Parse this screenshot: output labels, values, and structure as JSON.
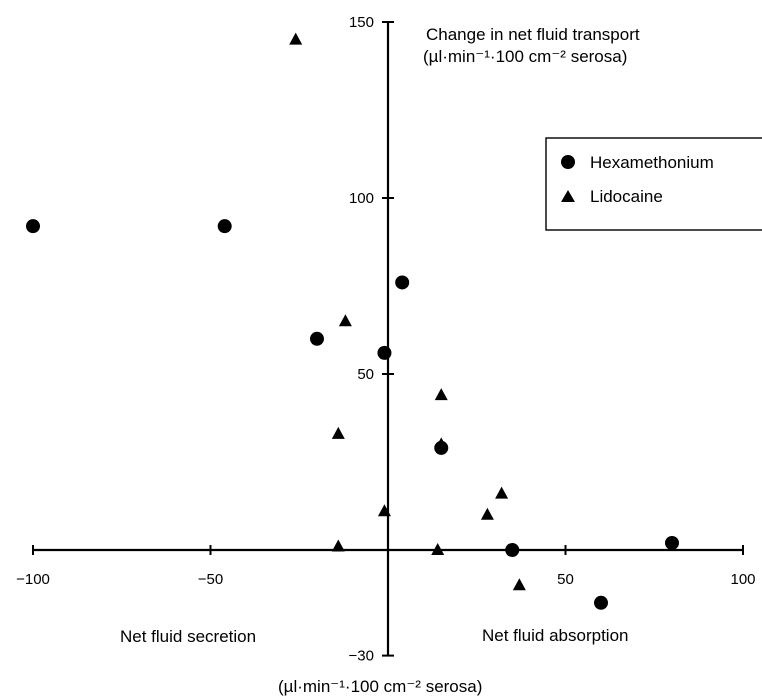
{
  "chart_data": {
    "type": "scatter",
    "y_axis_label_line1": "Change in net fluid transport",
    "y_axis_label_line2": "(µl·min⁻¹·100 cm⁻² serosa)",
    "x_axis_label": "(µl·min⁻¹·100 cm⁻² serosa)",
    "region_left_label": "Net fluid secretion",
    "region_right_label": "Net fluid absorption",
    "xlim": [
      -100,
      100
    ],
    "ylim": [
      -30,
      150
    ],
    "x_ticks": [
      -100,
      -50,
      50,
      100
    ],
    "x_tick_labels": [
      "−100",
      "−50",
      "50",
      "100"
    ],
    "y_ticks": [
      150,
      100,
      50,
      -30
    ],
    "y_tick_labels": [
      "150",
      "100",
      "50",
      "−30"
    ],
    "grid": false,
    "legend_placement": "top-right",
    "series": [
      {
        "name": "Hexamethonium",
        "marker": "circle",
        "points": [
          [
            -100,
            92
          ],
          [
            -46,
            92
          ],
          [
            -20,
            60
          ],
          [
            4,
            76
          ],
          [
            -1,
            56
          ],
          [
            15,
            29
          ],
          [
            35,
            0
          ],
          [
            60,
            -15
          ],
          [
            80,
            2
          ]
        ]
      },
      {
        "name": "Lidocaine",
        "marker": "triangle",
        "points": [
          [
            -26,
            145
          ],
          [
            -12,
            65
          ],
          [
            -14,
            33
          ],
          [
            -14,
            1
          ],
          [
            -1,
            11
          ],
          [
            15,
            44
          ],
          [
            15,
            30
          ],
          [
            14,
            0
          ],
          [
            32,
            16
          ],
          [
            28,
            10
          ],
          [
            37,
            -10
          ]
        ]
      }
    ]
  }
}
